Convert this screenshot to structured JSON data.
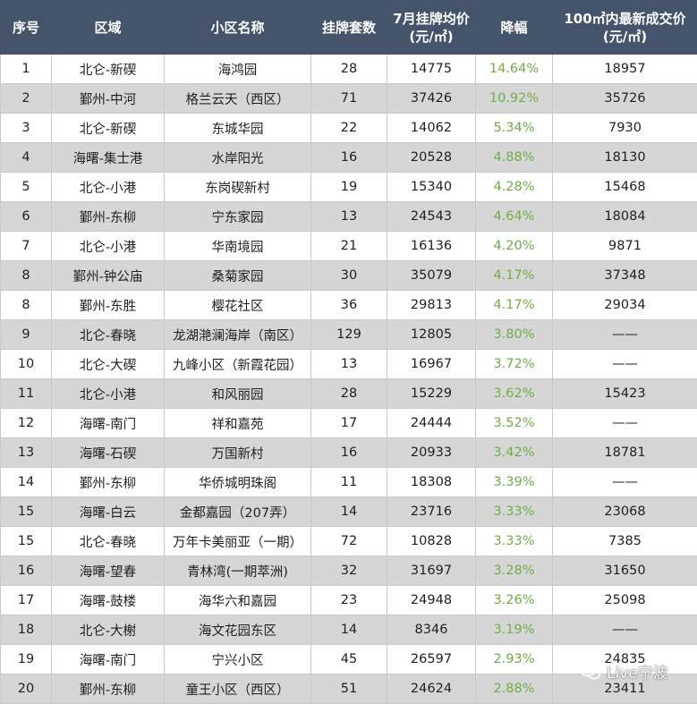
{
  "header": {
    "rank": "序号",
    "district": "区域",
    "community": "小区名称",
    "listings": "挂牌套数",
    "avg_price_line1": "7月挂牌均价",
    "avg_price_line2": "(元/㎡)",
    "drop": "降幅",
    "deal_price_line1": "100㎡内最新成交价",
    "deal_price_line2": "(元/㎡)"
  },
  "rows": [
    {
      "rank": "1",
      "district": "北仑-新碶",
      "community": "海鸿园",
      "listings": "28",
      "avg_price": "14775",
      "drop": "14.64%",
      "deal_price": "18957"
    },
    {
      "rank": "2",
      "district": "鄞州-中河",
      "community": "格兰云天（西区）",
      "listings": "71",
      "avg_price": "37426",
      "drop": "10.92%",
      "deal_price": "35726"
    },
    {
      "rank": "3",
      "district": "北仑-新碶",
      "community": "东城华园",
      "listings": "22",
      "avg_price": "14062",
      "drop": "5.34%",
      "deal_price": "7930"
    },
    {
      "rank": "4",
      "district": "海曙-集士港",
      "community": "水岸阳光",
      "listings": "16",
      "avg_price": "20528",
      "drop": "4.88%",
      "deal_price": "18130"
    },
    {
      "rank": "5",
      "district": "北仑-小港",
      "community": "东岗碶新村",
      "listings": "19",
      "avg_price": "15340",
      "drop": "4.28%",
      "deal_price": "15468"
    },
    {
      "rank": "6",
      "district": "鄞州-东柳",
      "community": "宁东家园",
      "listings": "13",
      "avg_price": "24543",
      "drop": "4.64%",
      "deal_price": "18084"
    },
    {
      "rank": "7",
      "district": "北仑-小港",
      "community": "华南境园",
      "listings": "21",
      "avg_price": "16136",
      "drop": "4.20%",
      "deal_price": "9871"
    },
    {
      "rank": "8",
      "district": "鄞州-钟公庙",
      "community": "桑菊家园",
      "listings": "30",
      "avg_price": "35079",
      "drop": "4.17%",
      "deal_price": "37348"
    },
    {
      "rank": "8",
      "district": "鄞州-东胜",
      "community": "樱花社区",
      "listings": "36",
      "avg_price": "29813",
      "drop": "4.17%",
      "deal_price": "29034"
    },
    {
      "rank": "9",
      "district": "北仑-春晓",
      "community": "龙湖滟澜海岸（南区）",
      "listings": "129",
      "avg_price": "12805",
      "drop": "3.80%",
      "deal_price": "——"
    },
    {
      "rank": "10",
      "district": "北仑-大碶",
      "community": "九峰小区（新霞花园）",
      "listings": "13",
      "avg_price": "16967",
      "drop": "3.72%",
      "deal_price": "——"
    },
    {
      "rank": "11",
      "district": "北仑-小港",
      "community": "和风丽园",
      "listings": "28",
      "avg_price": "15229",
      "drop": "3.62%",
      "deal_price": "15423"
    },
    {
      "rank": "12",
      "district": "海曙-南门",
      "community": "祥和嘉苑",
      "listings": "17",
      "avg_price": "24444",
      "drop": "3.52%",
      "deal_price": "——"
    },
    {
      "rank": "13",
      "district": "海曙-石碶",
      "community": "万国新村",
      "listings": "16",
      "avg_price": "20933",
      "drop": "3.42%",
      "deal_price": "18781"
    },
    {
      "rank": "14",
      "district": "鄞州-东柳",
      "community": "华侨城明珠阁",
      "listings": "11",
      "avg_price": "18308",
      "drop": "3.39%",
      "deal_price": "——"
    },
    {
      "rank": "15",
      "district": "海曙-白云",
      "community": "金都嘉园（207弄）",
      "listings": "14",
      "avg_price": "23716",
      "drop": "3.33%",
      "deal_price": "23068"
    },
    {
      "rank": "15",
      "district": "北仑-春晓",
      "community": "万年卡美丽亚（一期）",
      "listings": "72",
      "avg_price": "10828",
      "drop": "3.33%",
      "deal_price": "7385"
    },
    {
      "rank": "16",
      "district": "海曙-望春",
      "community": "青林湾(一期萃洲)",
      "listings": "32",
      "avg_price": "31697",
      "drop": "3.28%",
      "deal_price": "31650"
    },
    {
      "rank": "17",
      "district": "海曙-鼓楼",
      "community": "海华六和嘉园",
      "listings": "23",
      "avg_price": "24948",
      "drop": "3.26%",
      "deal_price": "25098"
    },
    {
      "rank": "18",
      "district": "北仑-大榭",
      "community": "海文花园东区",
      "listings": "14",
      "avg_price": "8346",
      "drop": "3.19%",
      "deal_price": "——"
    },
    {
      "rank": "19",
      "district": "海曙-南门",
      "community": "宁兴小区",
      "listings": "45",
      "avg_price": "26597",
      "drop": "2.93%",
      "deal_price": "24835"
    },
    {
      "rank": "20",
      "district": "鄞州-东柳",
      "community": "童王小区（西区）",
      "listings": "51",
      "avg_price": "24624",
      "drop": "2.88%",
      "deal_price": "23411"
    }
  ],
  "watermark": {
    "text": "Live宁波",
    "icon": "wechat-icon"
  },
  "colors": {
    "header_bg": "#44546a",
    "header_text": "#ffffff",
    "stripe_bg": "#d6d6d6",
    "drop_text": "#70ad47"
  }
}
